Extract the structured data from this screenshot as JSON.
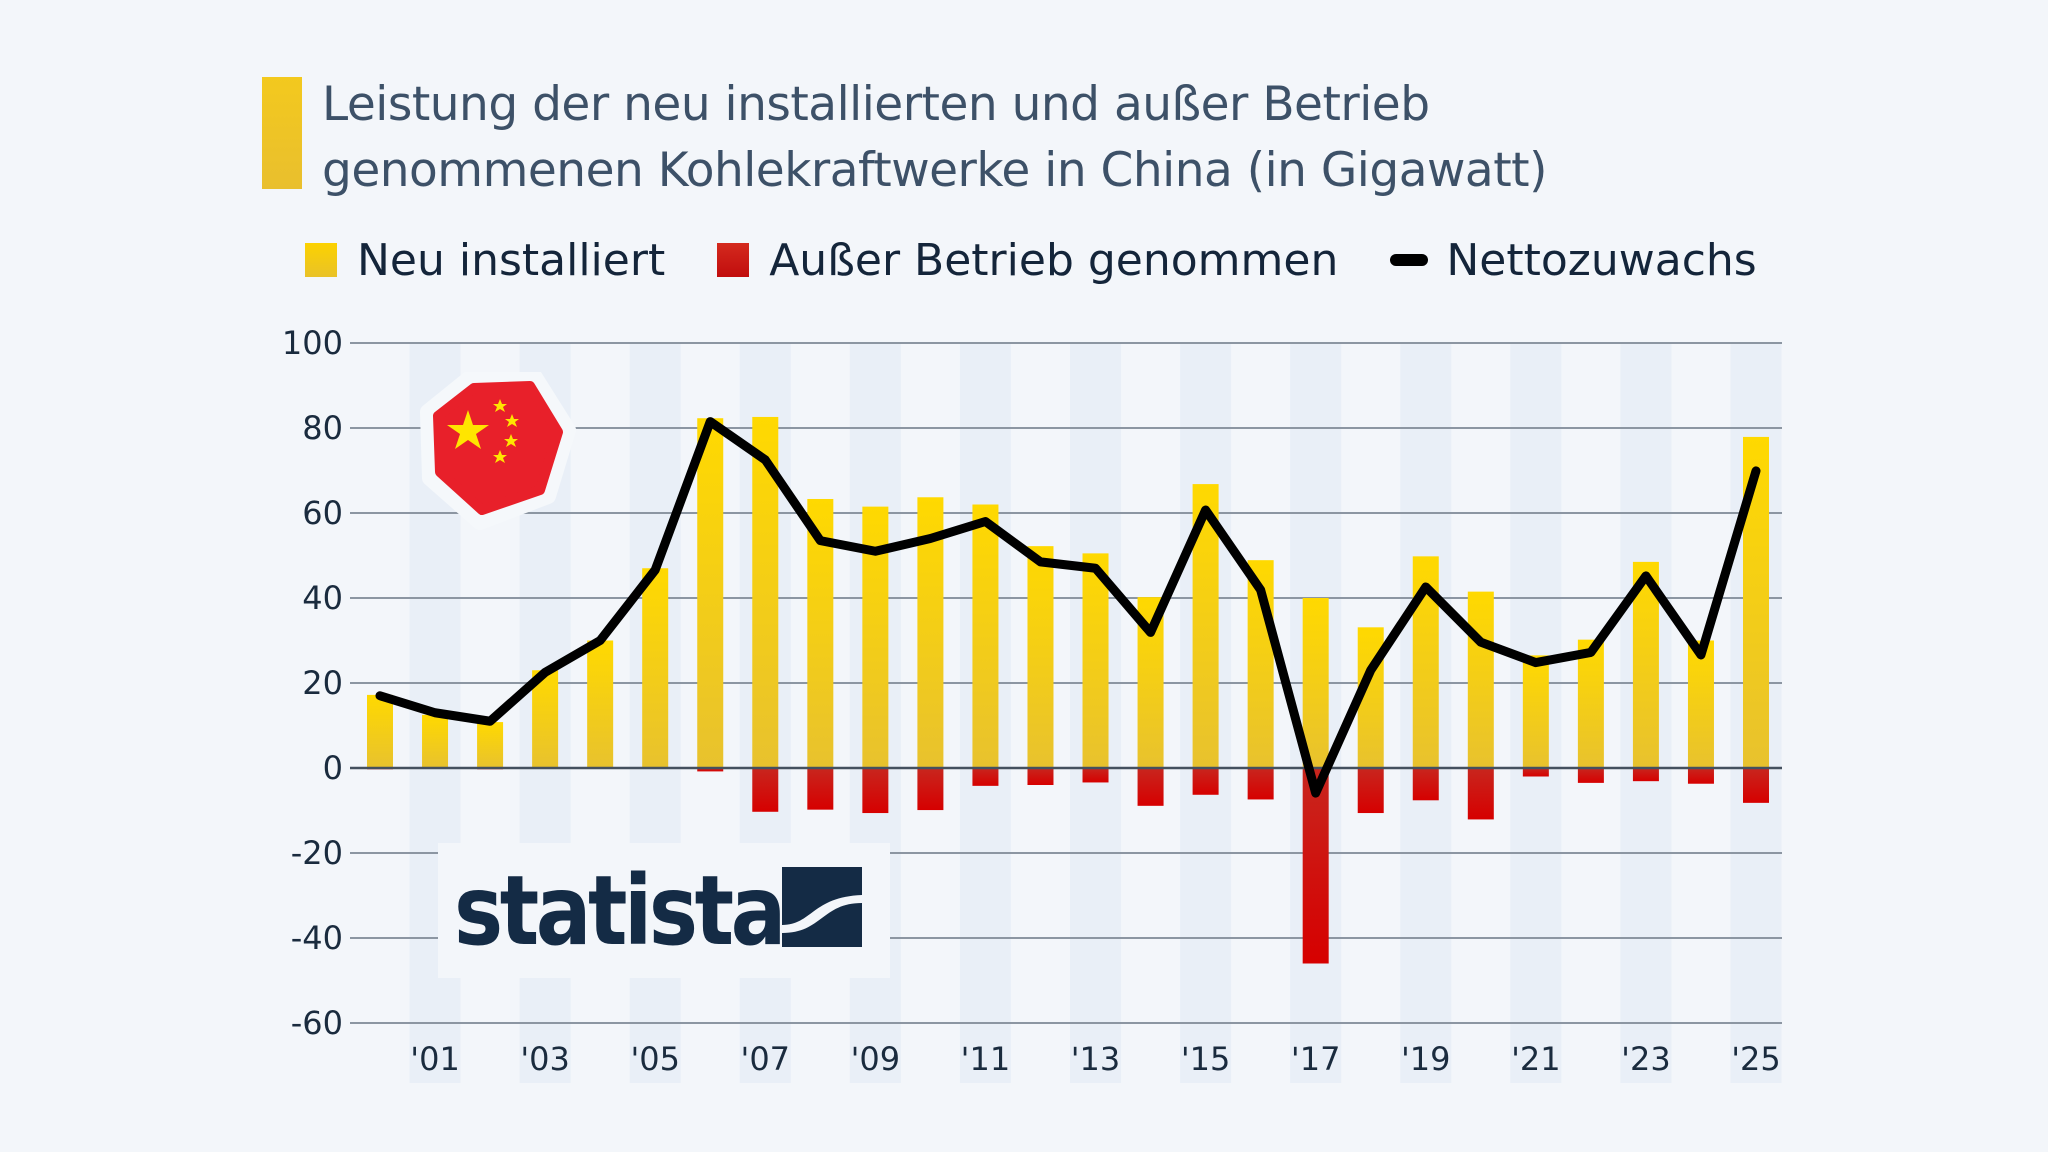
{
  "title": {
    "line1": "Leistung der neu installierten und außer Betrieb",
    "line2": "genommenen Kohlekraftwerke in China (in Gigawatt)",
    "accent_color": "#f0c419"
  },
  "legend": [
    {
      "label": "Neu installiert",
      "color": "#fcd200",
      "type": "bar"
    },
    {
      "label": "Außer Betrieb genommen",
      "color": "#cc1111",
      "type": "bar"
    },
    {
      "label": "Nettozuwachs",
      "color": "#000000",
      "type": "line"
    }
  ],
  "branding": {
    "logo_text": "statista",
    "flag": "China"
  },
  "chart_data": {
    "type": "bar",
    "title": "Leistung der neu installierten und außer Betrieb genommenen Kohlekraftwerke in China (in Gigawatt)",
    "xlabel": "",
    "ylabel": "Gigawatt",
    "ylim": [
      -60,
      100
    ],
    "yticks": [
      100,
      80,
      60,
      40,
      20,
      0,
      -20,
      -40,
      -60
    ],
    "grid": true,
    "legend_position": "top",
    "categories": [
      "2000",
      "2001",
      "2002",
      "2003",
      "2004",
      "2005",
      "2006",
      "2007",
      "2008",
      "2009",
      "2010",
      "2011",
      "2012",
      "2013",
      "2014",
      "2015",
      "2016",
      "2017",
      "2018",
      "2019",
      "2020",
      "2021",
      "2022",
      "2023",
      "2024",
      "2025"
    ],
    "xtick_labels": [
      "'01",
      "'03",
      "'05",
      "'07",
      "'09",
      "'11",
      "'13",
      "'15",
      "'17",
      "'19",
      "'21",
      "'23",
      "'25"
    ],
    "series": [
      {
        "name": "Neu installiert",
        "type": "bar",
        "color": "#fcd200",
        "values": [
          17.2,
          12.5,
          10.8,
          23,
          30,
          47,
          82.3,
          82.6,
          63.3,
          61.5,
          63.7,
          62,
          52.2,
          50.5,
          40.2,
          66.8,
          48.9,
          40,
          33.1,
          49.8,
          41.5,
          26.5,
          30.2,
          48.5,
          30,
          77.9
        ]
      },
      {
        "name": "Außer Betrieb genommen",
        "type": "bar",
        "color": "#cc1111",
        "values": [
          -0.3,
          0,
          -0.3,
          0,
          0,
          0,
          -0.8,
          -10.3,
          -9.8,
          -10.6,
          -9.9,
          -4.2,
          -4,
          -3.4,
          -8.9,
          -6.3,
          -7.4,
          -46,
          -10.6,
          -7.6,
          -12.1,
          -2,
          -3.5,
          -3.1,
          -3.7,
          -8.2
        ]
      },
      {
        "name": "Nettozuwachs",
        "type": "line",
        "color": "#000000",
        "values": [
          17,
          13,
          11,
          22.5,
          30,
          46.6,
          81.5,
          72.5,
          53.5,
          51,
          54,
          58,
          48.5,
          47,
          31.9,
          60.7,
          41.9,
          -5.9,
          23,
          42.6,
          29.6,
          24.8,
          27.2,
          45.2,
          26.6,
          69.9
        ]
      }
    ]
  }
}
